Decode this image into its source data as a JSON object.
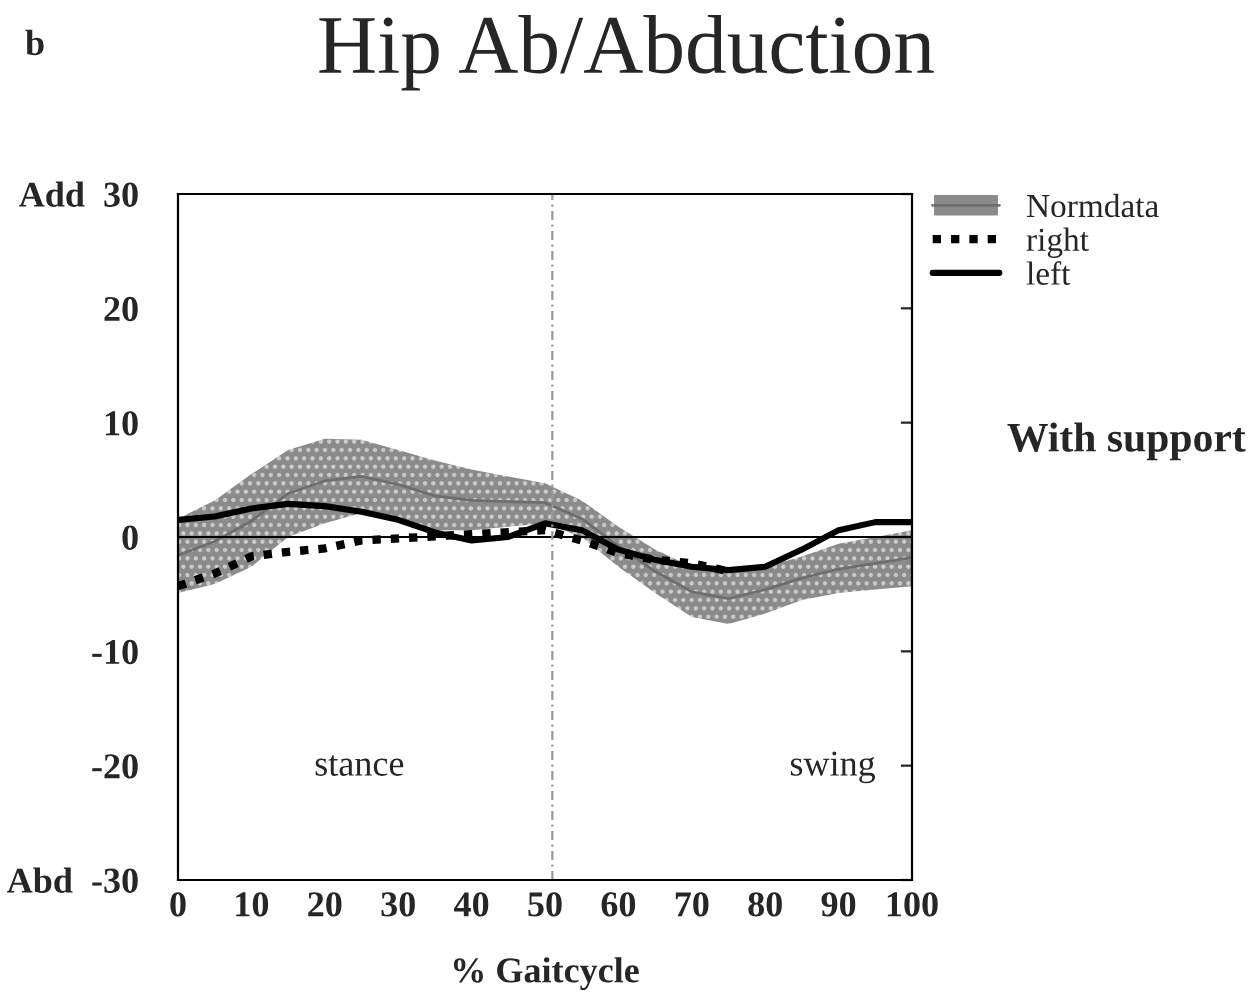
{
  "chart_data": {
    "type": "line",
    "title": "Hip Ab/Abduction",
    "xlabel": "% Gaitcycle",
    "x": [
      0,
      5,
      10,
      15,
      20,
      25,
      30,
      35,
      40,
      45,
      50,
      55,
      60,
      65,
      70,
      75,
      80,
      85,
      90,
      95,
      100
    ],
    "xlim": [
      0,
      100
    ],
    "xticks": [
      0,
      10,
      20,
      30,
      40,
      50,
      60,
      70,
      80,
      90,
      100
    ],
    "ylim": [
      -30,
      30
    ],
    "yticks": [
      {
        "value": -30,
        "label": "Abd  -30"
      },
      -20,
      -10,
      0,
      10,
      20,
      {
        "value": 30,
        "label": "Add  30"
      }
    ],
    "series": [
      {
        "name": "Normdata",
        "color": "#6e6e6e",
        "line_style": "solid",
        "values": [
          -1.6,
          -0.4,
          1.4,
          3.8,
          4.9,
          5.3,
          4.6,
          3.6,
          3.2,
          3.1,
          3.0,
          1.6,
          -0.8,
          -3.0,
          -4.8,
          -5.4,
          -4.6,
          -3.6,
          -2.8,
          -2.3,
          -1.8
        ],
        "lower": [
          -4.9,
          -4.1,
          -2.6,
          0,
          1.2,
          2.1,
          1.5,
          0.6,
          0.6,
          0.9,
          1.2,
          0,
          -2.6,
          -4.9,
          -7.0,
          -7.6,
          -6.7,
          -5.5,
          -4.9,
          -4.6,
          -4.3
        ],
        "upper": [
          1.6,
          3.2,
          5.5,
          7.6,
          8.6,
          8.5,
          7.6,
          6.7,
          5.9,
          5.3,
          4.7,
          3.2,
          0.9,
          -1.1,
          -2.6,
          -3.2,
          -2.6,
          -1.7,
          -0.6,
          0,
          0.6
        ]
      },
      {
        "name": "right",
        "color": "#000000",
        "line_style": "dotted",
        "values": [
          -4.3,
          -3.2,
          -1.7,
          -1.3,
          -1.0,
          -0.3,
          null,
          null,
          null,
          null,
          0.6,
          -0.3,
          -1.4,
          -2.0,
          -2.3,
          -3.0,
          null,
          null,
          null,
          null,
          null
        ]
      },
      {
        "name": "left",
        "color": "#000000",
        "line_style": "solid",
        "values": [
          1.5,
          1.8,
          2.5,
          2.9,
          2.7,
          2.2,
          1.5,
          0.4,
          -0.3,
          0,
          1.2,
          0.6,
          -1.1,
          -2.0,
          -2.6,
          -2.9,
          -2.6,
          -1.1,
          0.6,
          1.3,
          1.3
        ]
      }
    ],
    "ref_lines": [
      {
        "axis": "y",
        "value": 0,
        "color": "#000000",
        "line_style": "solid"
      },
      {
        "axis": "x",
        "value": 51,
        "color": "#999999",
        "line_style": "dashed"
      }
    ],
    "annotations": [
      "b",
      "stance",
      "swing",
      "With support"
    ],
    "grid": false,
    "legend": "top right"
  }
}
